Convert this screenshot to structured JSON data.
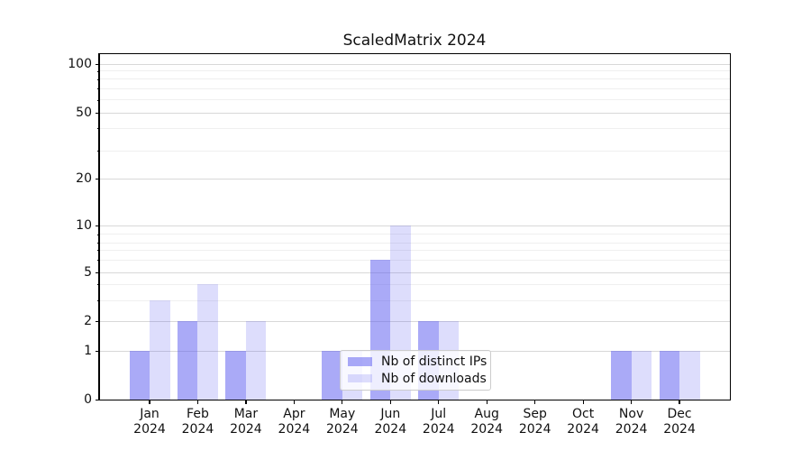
{
  "chart_data": {
    "type": "bar",
    "title": "ScaledMatrix 2024",
    "categories": [
      "Jan 2024",
      "Feb 2024",
      "Mar 2024",
      "Apr 2024",
      "May 2024",
      "Jun 2024",
      "Jul 2024",
      "Aug 2024",
      "Sep 2024",
      "Oct 2024",
      "Nov 2024",
      "Dec 2024"
    ],
    "series": [
      {
        "name": "Nb of distinct IPs",
        "color": "rgba(85,85,240,0.5)",
        "values": [
          1,
          2,
          1,
          0,
          1,
          6,
          2,
          0,
          0,
          0,
          1,
          1
        ]
      },
      {
        "name": "Nb of downloads",
        "color": "rgba(85,85,240,0.2)",
        "values": [
          3,
          4,
          2,
          0,
          1,
          10,
          2,
          0,
          0,
          0,
          1,
          1
        ]
      }
    ],
    "xlabel": "",
    "ylabel": "",
    "yaxis": {
      "scale": "log-like",
      "major_ticks": [
        0,
        1,
        2,
        5,
        10,
        20,
        50,
        100
      ],
      "minor_ticks": [
        3,
        4,
        6,
        7,
        8,
        9,
        30,
        40,
        60,
        70,
        80,
        90
      ],
      "ylim": [
        0,
        115
      ],
      "grid": "on"
    },
    "legend": {
      "position": "lower-center-inside",
      "entries": [
        "Nb of distinct IPs",
        "Nb of downloads"
      ]
    }
  },
  "colors": {
    "background": "#ffffff",
    "bar_distinct_ips": "rgba(85,85,240,0.5)",
    "bar_downloads": "rgba(85,85,240,0.2)",
    "grid_major": "#d8d8d8",
    "grid_minor": "#efefef",
    "axis": "#000000",
    "text": "#111111",
    "legend_border": "#cccccc"
  }
}
